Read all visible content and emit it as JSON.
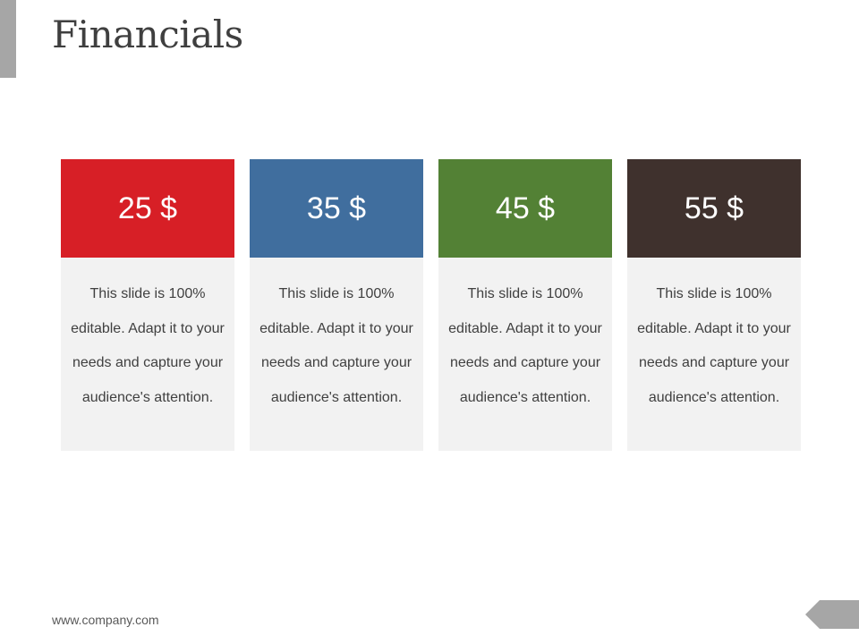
{
  "slide": {
    "title": "Financials",
    "footer_url": "www.company.com"
  },
  "cards": [
    {
      "value": "25 $",
      "color": "#d71f26",
      "text": "This slide is 100% editable. Adapt it to your needs and capture your audience's attention."
    },
    {
      "value": "35 $",
      "color": "#406e9e",
      "text": "This slide is 100% editable. Adapt it to your needs and capture your audience's attention."
    },
    {
      "value": "45 $",
      "color": "#538135",
      "text": "This slide is 100% editable. Adapt it to your needs and capture your audience's attention."
    },
    {
      "value": "55 $",
      "color": "#3f312d",
      "text": "This slide is 100% editable. Adapt it to your needs and capture your audience's attention."
    }
  ],
  "colors": {
    "accent_gray": "#a6a6a6",
    "card_body_bg": "#f2f2f2"
  }
}
